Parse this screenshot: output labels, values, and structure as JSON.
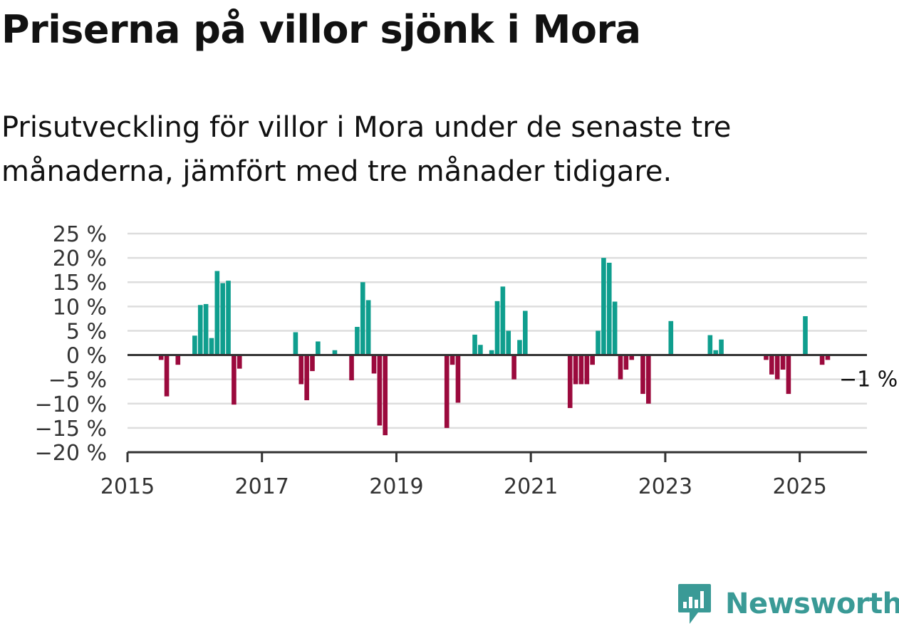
{
  "title": "Priserna på villor sjönk i Mora",
  "subtitle": "Prisutveckling för villor i Mora under de senaste tre månaderna, jämfört med tre månader tidigare.",
  "brand": {
    "name": "Newsworthy",
    "color": "#3a9a96",
    "icon": "newsworthy-chart-icon"
  },
  "chart_data": {
    "type": "bar",
    "title": "",
    "xlabel": "",
    "ylabel": "",
    "ylim": [
      -20,
      25
    ],
    "xlim": [
      "2015-01",
      "2026-01"
    ],
    "yticks": [
      25,
      20,
      15,
      10,
      5,
      0,
      -5,
      -10,
      -15,
      -20
    ],
    "ytick_labels": [
      "25 %",
      "20 %",
      "15 %",
      "10 %",
      "5 %",
      "0 %",
      "−5 %",
      "−10 %",
      "−15 %",
      "−20 %"
    ],
    "xticks": [
      "2015",
      "2017",
      "2019",
      "2021",
      "2023",
      "2025"
    ],
    "grid": true,
    "colors": {
      "positive": "#0f9e8e",
      "negative": "#9b0a3d",
      "grid": "#dddddd",
      "axis": "#333333"
    },
    "end_label": "−1 %",
    "series": [
      {
        "x": [
          "2015-07",
          "2015-08",
          "2015-10",
          "2016-01",
          "2016-02",
          "2016-03",
          "2016-04",
          "2016-05",
          "2016-06",
          "2016-07",
          "2016-08",
          "2016-09",
          "2017-07",
          "2017-08",
          "2017-09",
          "2017-10",
          "2017-11",
          "2018-02",
          "2018-05",
          "2018-06",
          "2018-07",
          "2018-08",
          "2018-09",
          "2018-10",
          "2018-11",
          "2019-10",
          "2019-11",
          "2019-12",
          "2020-03",
          "2020-04",
          "2020-06",
          "2020-07",
          "2020-08",
          "2020-09",
          "2020-10",
          "2020-11",
          "2020-12",
          "2021-08",
          "2021-09",
          "2021-10",
          "2021-11",
          "2021-12",
          "2022-01",
          "2022-02",
          "2022-03",
          "2022-04",
          "2022-05",
          "2022-06",
          "2022-07",
          "2022-09",
          "2022-10",
          "2023-02",
          "2023-09",
          "2023-10",
          "2023-11",
          "2024-07",
          "2024-08",
          "2024-09",
          "2024-10",
          "2024-11",
          "2025-02",
          "2025-05",
          "2025-06"
        ],
        "values": [
          -1,
          -8.5,
          -2,
          4,
          10.3,
          10.5,
          3.5,
          17.3,
          14.8,
          15.3,
          -10.2,
          -2.8,
          4.7,
          -6,
          -9.3,
          -3.3,
          2.8,
          1,
          -5.2,
          5.8,
          15,
          11.3,
          -3.8,
          -14.5,
          -16.5,
          -15,
          -2,
          -9.8,
          4.2,
          2.1,
          1,
          11.1,
          14.1,
          5,
          -5,
          3.1,
          9.1,
          -10.9,
          -6,
          -6,
          -6,
          -2,
          5,
          20,
          19,
          11,
          -5,
          -3,
          -1,
          -8,
          -10,
          7,
          4.1,
          1,
          3.2,
          -1,
          -4,
          -5,
          -3,
          -8,
          8,
          -2,
          -1
        ]
      }
    ]
  }
}
